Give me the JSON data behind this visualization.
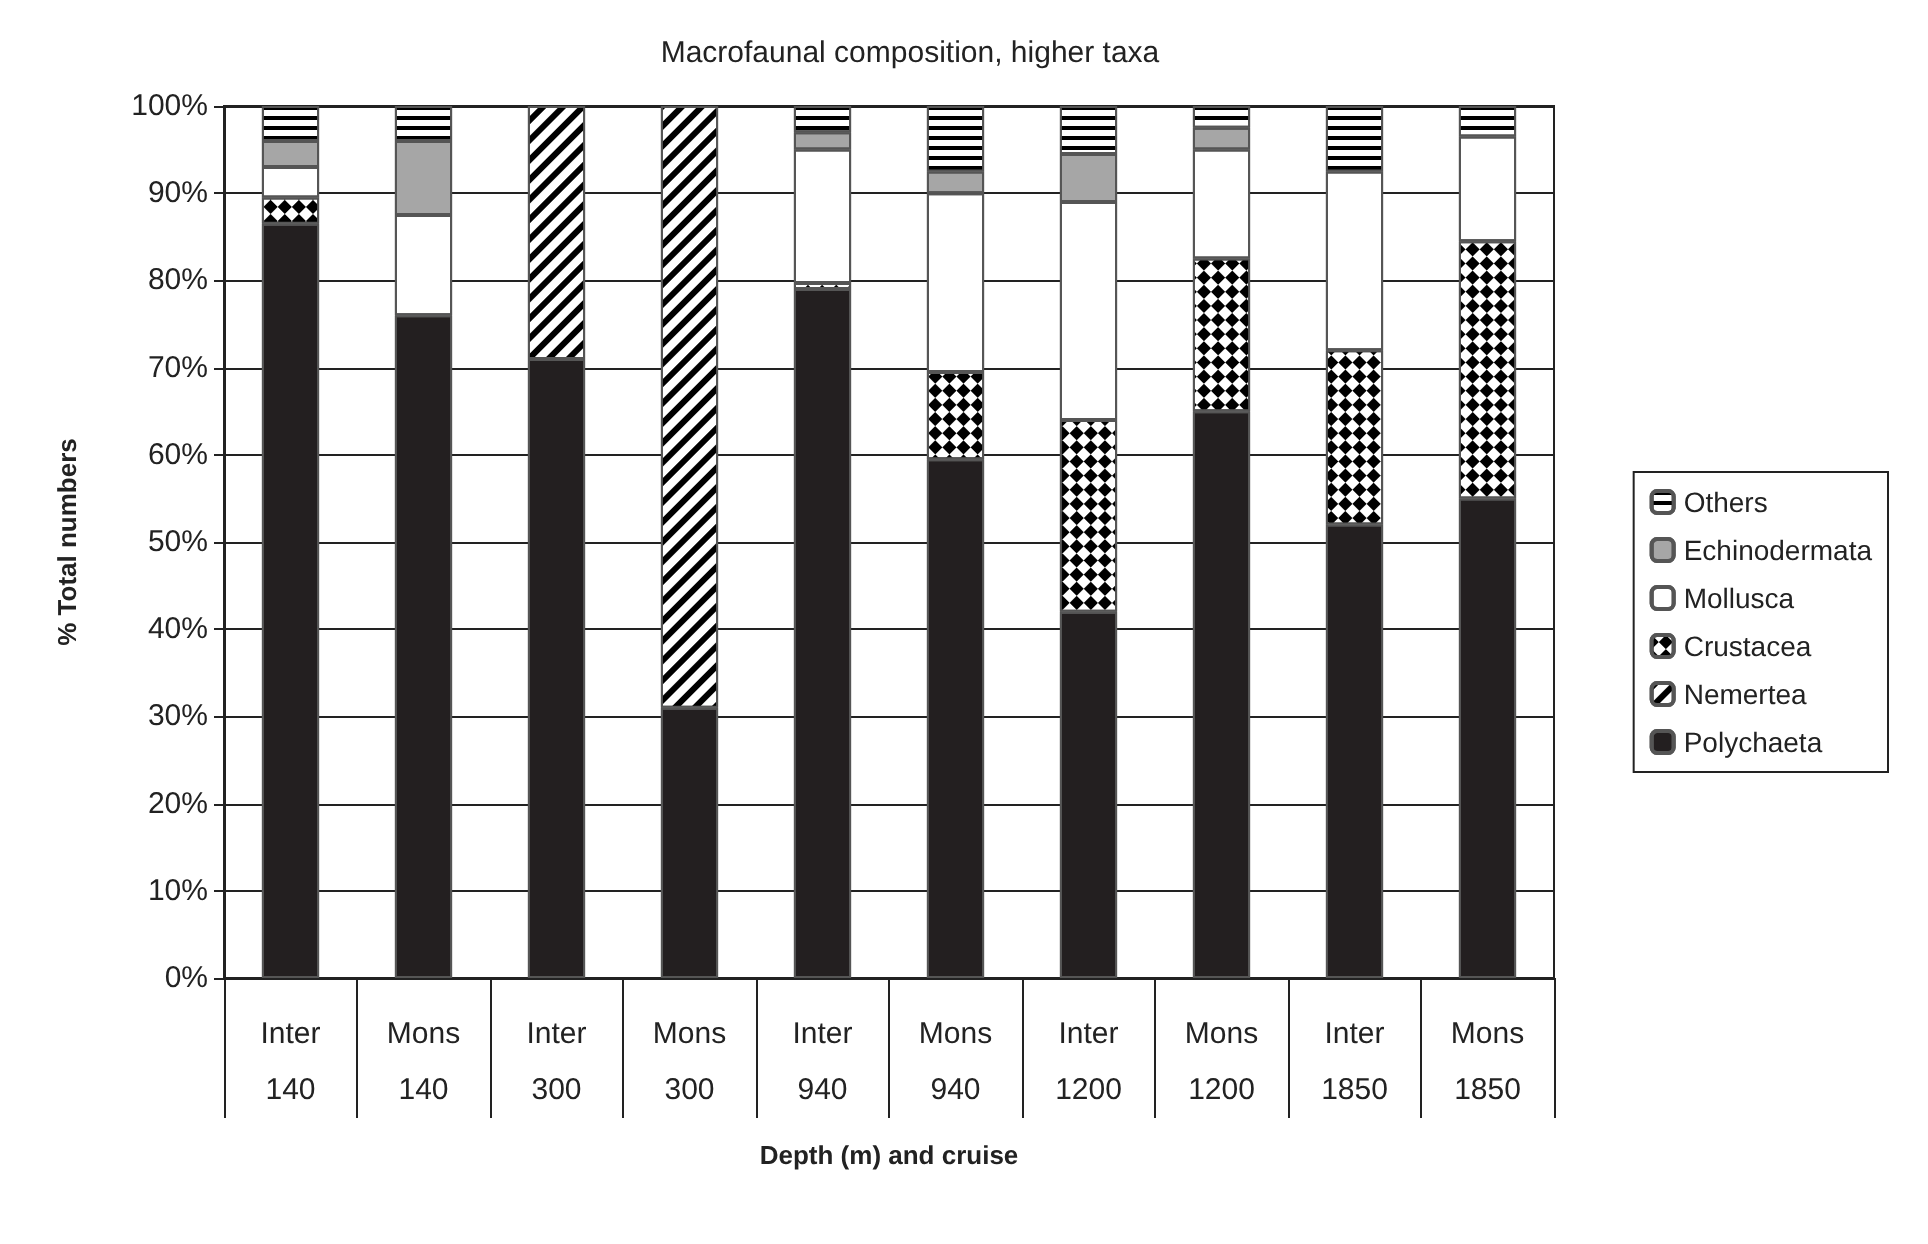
{
  "chart_data": {
    "type": "bar",
    "title": "Macrofaunal composition, higher taxa",
    "xlabel": "Depth (m) and cruise",
    "ylabel": "% Total numbers",
    "categories": [
      "Inter\n140",
      "Mons\n140",
      "Inter\n300",
      "Mons\n300",
      "Inter\n940",
      "Mons\n940",
      "Inter\n1200",
      "Mons\n1200",
      "Inter\n1850",
      "Mons\n1850"
    ],
    "stacked": true,
    "series": [
      {
        "name": "Polychaeta",
        "color": "#231f20",
        "values": [
          86.5,
          76,
          71,
          31,
          79,
          59.5,
          42,
          65,
          52,
          55
        ]
      },
      {
        "name": "Nemertea",
        "color": "#ffffff",
        "values": [
          null,
          0,
          29,
          69,
          null,
          0,
          0,
          0,
          0,
          0
        ]
      },
      {
        "name": "Crustacea",
        "color": "#ffffff",
        "values": [
          3,
          0,
          0,
          0,
          0.7,
          10,
          22,
          17.5,
          20,
          29.5
        ]
      },
      {
        "name": "Mollusca",
        "color": "#ffffff",
        "values": [
          3.5,
          11.5,
          0,
          0,
          15.3,
          20.5,
          25,
          12.5,
          20.5,
          12
        ]
      },
      {
        "name": "Echinodermata",
        "color": "#a6a6a6",
        "values": [
          3,
          8.5,
          0,
          0,
          2,
          2.5,
          5.5,
          2.5,
          0,
          0
        ]
      },
      {
        "name": "Others",
        "color": "#ffffff",
        "values": [
          4,
          4,
          0,
          0,
          3,
          7.5,
          5.5,
          2.5,
          7.5,
          3.5
        ]
      }
    ],
    "ylim": [
      0,
      100
    ],
    "yticks": [
      {
        "value": 0,
        "label": "0%"
      },
      {
        "value": 10,
        "label": "10%"
      },
      {
        "value": 20,
        "label": "20%"
      },
      {
        "value": 30,
        "label": "30%"
      },
      {
        "value": 40,
        "label": "40%"
      },
      {
        "value": 50,
        "label": "50%"
      },
      {
        "value": 60,
        "label": "60%"
      },
      {
        "value": 70,
        "label": "70%"
      },
      {
        "value": 80,
        "label": "80%"
      },
      {
        "value": 90,
        "label": "90%"
      },
      {
        "value": 100,
        "label": "100%"
      }
    ],
    "grid": "y",
    "legend": "right"
  }
}
